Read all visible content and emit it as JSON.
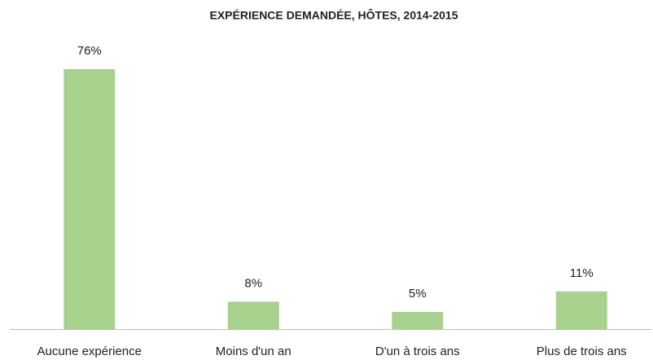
{
  "chart_data": {
    "type": "bar",
    "title": "EXPÉRIENCE DEMANDÉE, HÔTES, 2014-2015",
    "categories": [
      "Aucune expérience",
      "Moins d'un an",
      "D'un à trois ans",
      "Plus de trois ans"
    ],
    "values": [
      76,
      8,
      5,
      11
    ],
    "value_labels": [
      "76%",
      "8%",
      "5%",
      "11%"
    ],
    "color": "#a9d18e"
  }
}
